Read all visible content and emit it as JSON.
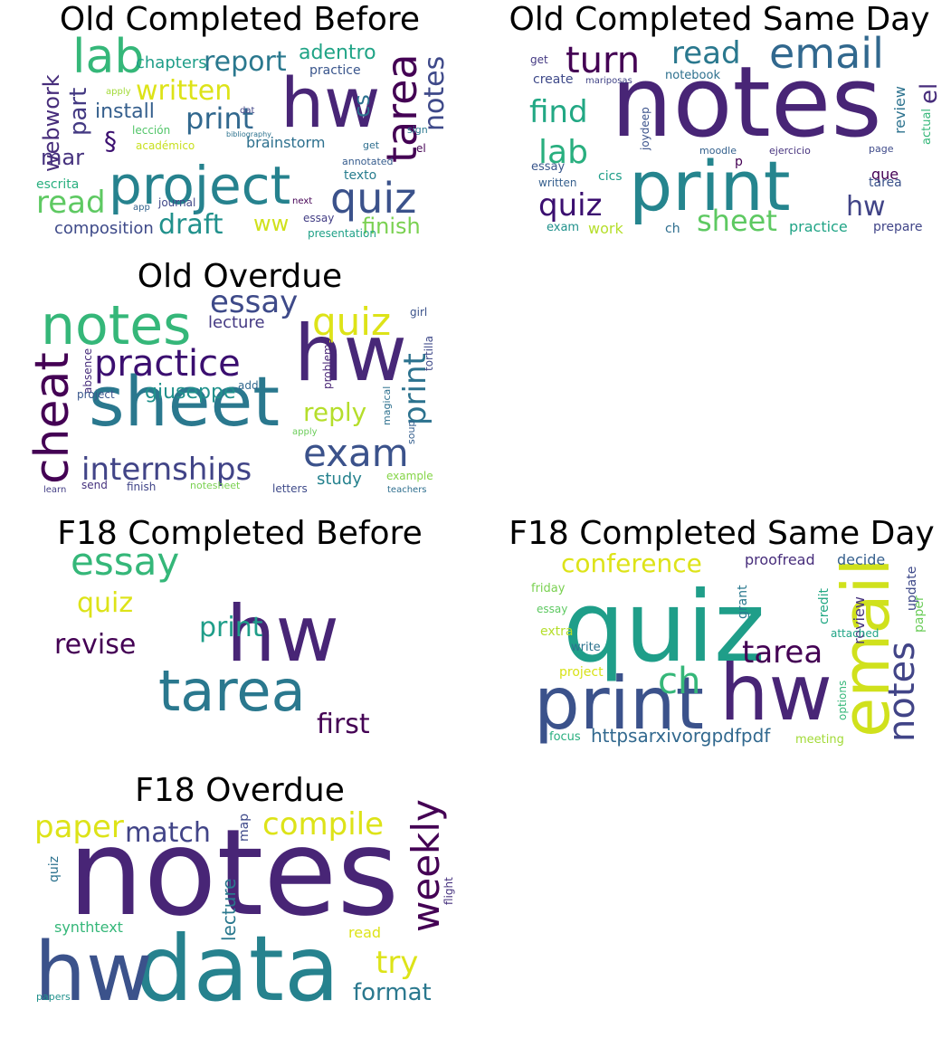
{
  "figure": {
    "panels": [
      {
        "title": "Old Completed Before",
        "words": [
          {
            "t": "project",
            "c": "#26828e"
          },
          {
            "t": "hw",
            "c": "#482576"
          },
          {
            "t": "quiz",
            "c": "#3b528b"
          },
          {
            "t": "lab",
            "c": "#35b779"
          },
          {
            "t": "print",
            "c": "#31688e"
          },
          {
            "t": "written",
            "c": "#dde318"
          },
          {
            "t": "report",
            "c": "#2a788e"
          },
          {
            "t": "tarea",
            "c": "#440154"
          },
          {
            "t": "notes",
            "c": "#3e4989"
          },
          {
            "t": "read",
            "c": "#5ec962"
          },
          {
            "t": "webwork",
            "c": "#472d7b"
          },
          {
            "t": "draft",
            "c": "#21918c"
          },
          {
            "t": "part",
            "c": "#443a83"
          },
          {
            "t": "finish",
            "c": "#7ad151"
          },
          {
            "t": "install",
            "c": "#355f8d"
          },
          {
            "t": "cs",
            "c": "#2c728e"
          },
          {
            "t": "adentro",
            "c": "#20a486"
          },
          {
            "t": "§",
            "c": "#3b0f70"
          },
          {
            "t": "mar",
            "c": "#46327e"
          },
          {
            "t": "ww",
            "c": "#d0e11c"
          },
          {
            "t": "chapters",
            "c": "#1f9e89"
          },
          {
            "t": "composition",
            "c": "#3e4a89"
          },
          {
            "t": "brainstorm",
            "c": "#2d708e"
          },
          {
            "t": "practice",
            "c": "#39558c"
          },
          {
            "t": "lección",
            "c": "#52c569"
          },
          {
            "t": "académico",
            "c": "#c8e020"
          },
          {
            "t": "escrita",
            "c": "#29af7f"
          },
          {
            "t": "journal",
            "c": "#3f4788"
          },
          {
            "t": "texto",
            "c": "#287d8e"
          },
          {
            "t": "essay",
            "c": "#433e85"
          },
          {
            "t": "presentation",
            "c": "#1fa187"
          },
          {
            "t": "annotated",
            "c": "#365c8d"
          },
          {
            "t": "apply",
            "c": "#a2da37"
          },
          {
            "t": "app",
            "c": "#33638d"
          },
          {
            "t": "next",
            "c": "#440154"
          },
          {
            "t": "get",
            "c": "#2e6e8e"
          },
          {
            "t": "sign",
            "c": "#2a788e"
          },
          {
            "t": "el",
            "c": "#440154"
          },
          {
            "t": "dat",
            "c": "#414487"
          },
          {
            "t": "bibliography",
            "c": "#2c728e"
          }
        ]
      },
      {
        "title": "Old Completed Same Day",
        "words": [
          {
            "t": "notes",
            "c": "#482576"
          },
          {
            "t": "print",
            "c": "#25858e"
          },
          {
            "t": "email",
            "c": "#31688e"
          },
          {
            "t": "turn",
            "c": "#440154"
          },
          {
            "t": "read",
            "c": "#2a788e"
          },
          {
            "t": "lab",
            "c": "#29af7f"
          },
          {
            "t": "find",
            "c": "#22a884"
          },
          {
            "t": "quiz",
            "c": "#3b0f70"
          },
          {
            "t": "sheet",
            "c": "#5ec962"
          },
          {
            "t": "hw",
            "c": "#414487"
          },
          {
            "t": "el",
            "c": "#472d7b"
          },
          {
            "t": "review",
            "c": "#2c728e"
          },
          {
            "t": "actual",
            "c": "#35b779"
          },
          {
            "t": "que",
            "c": "#440154"
          },
          {
            "t": "tarea",
            "c": "#3b528b"
          },
          {
            "t": "practice",
            "c": "#20a486"
          },
          {
            "t": "prepare",
            "c": "#404588"
          },
          {
            "t": "create",
            "c": "#3e4989"
          },
          {
            "t": "get",
            "c": "#443983"
          },
          {
            "t": "notebook",
            "c": "#2d708e"
          },
          {
            "t": "essay",
            "c": "#39568c"
          },
          {
            "t": "written",
            "c": "#355f8d"
          },
          {
            "t": "exam",
            "c": "#21918c"
          },
          {
            "t": "work",
            "c": "#b5de2b"
          },
          {
            "t": "ch",
            "c": "#2e6e8e"
          },
          {
            "t": "cics",
            "c": "#1f9e89"
          },
          {
            "t": "moodle",
            "c": "#34618d"
          },
          {
            "t": "ejercicio",
            "c": "#46327e"
          },
          {
            "t": "page",
            "c": "#3e4a89"
          },
          {
            "t": "joydeep",
            "c": "#3b528b"
          },
          {
            "t": "p",
            "c": "#440154"
          },
          {
            "t": "mariposas",
            "c": "#414487"
          }
        ]
      },
      {
        "title": "Old Overdue",
        "words": [
          {
            "t": "sheet",
            "c": "#2a788e"
          },
          {
            "t": "hw",
            "c": "#482878"
          },
          {
            "t": "notes",
            "c": "#35b779"
          },
          {
            "t": "cheat",
            "c": "#440154"
          },
          {
            "t": "practice",
            "c": "#3b0f70"
          },
          {
            "t": "exam",
            "c": "#3b528b"
          },
          {
            "t": "internships",
            "c": "#414487"
          },
          {
            "t": "quiz",
            "c": "#dde318"
          },
          {
            "t": "essay",
            "c": "#3e4a89"
          },
          {
            "t": "print",
            "c": "#2c728e"
          },
          {
            "t": "giuseppe",
            "c": "#21918c"
          },
          {
            "t": "reply",
            "c": "#b5de2b"
          },
          {
            "t": "lecture",
            "c": "#443983"
          },
          {
            "t": "study",
            "c": "#26828e"
          },
          {
            "t": "problems",
            "c": "#482475"
          },
          {
            "t": "tortilla",
            "c": "#3e4989"
          },
          {
            "t": "soup",
            "c": "#355f8d"
          },
          {
            "t": "magical",
            "c": "#2d708e"
          },
          {
            "t": "absence",
            "c": "#472d7b"
          },
          {
            "t": "project",
            "c": "#39568c"
          },
          {
            "t": "add",
            "c": "#31688e"
          },
          {
            "t": "girl",
            "c": "#3b528b"
          },
          {
            "t": "example",
            "c": "#86d549"
          },
          {
            "t": "send",
            "c": "#46327e"
          },
          {
            "t": "finish",
            "c": "#404588"
          },
          {
            "t": "letters",
            "c": "#3e4a89"
          },
          {
            "t": "notesheet",
            "c": "#7ad151"
          },
          {
            "t": "learn",
            "c": "#433e85"
          },
          {
            "t": "teachers",
            "c": "#2e6e8e"
          },
          {
            "t": "apply",
            "c": "#6ccd5a"
          }
        ]
      },
      {
        "title": "F18 Completed Before",
        "words": [
          {
            "t": "hw",
            "c": "#482576"
          },
          {
            "t": "tarea",
            "c": "#2a788e"
          },
          {
            "t": "essay",
            "c": "#35b779"
          },
          {
            "t": "quiz",
            "c": "#dde318"
          },
          {
            "t": "print",
            "c": "#1f9e89"
          },
          {
            "t": "revise",
            "c": "#440154"
          },
          {
            "t": "first",
            "c": "#440154"
          }
        ]
      },
      {
        "title": "F18 Completed Same Day",
        "words": [
          {
            "t": "quiz",
            "c": "#1f9e89"
          },
          {
            "t": "email",
            "c": "#d0e11c"
          },
          {
            "t": "print",
            "c": "#3b528b"
          },
          {
            "t": "hw",
            "c": "#482576"
          },
          {
            "t": "notes",
            "c": "#414487"
          },
          {
            "t": "tarea",
            "c": "#440154"
          },
          {
            "t": "ch",
            "c": "#35b779"
          },
          {
            "t": "conference",
            "c": "#dde318"
          },
          {
            "t": "httpsarxivorgpdfpdf",
            "c": "#31688e"
          },
          {
            "t": "proofread",
            "c": "#472d7b"
          },
          {
            "t": "decide",
            "c": "#355f8d"
          },
          {
            "t": "grant",
            "c": "#2a788e"
          },
          {
            "t": "credit",
            "c": "#22a884"
          },
          {
            "t": "review",
            "c": "#46327e"
          },
          {
            "t": "update",
            "c": "#3e4989"
          },
          {
            "t": "paper",
            "c": "#6ccd5a"
          },
          {
            "t": "friday",
            "c": "#7ad151"
          },
          {
            "t": "essay",
            "c": "#5ec962"
          },
          {
            "t": "extra",
            "c": "#b5de2b"
          },
          {
            "t": "write",
            "c": "#2c728e"
          },
          {
            "t": "project",
            "c": "#d8e219"
          },
          {
            "t": "attached",
            "c": "#20a486"
          },
          {
            "t": "options",
            "c": "#35b779"
          },
          {
            "t": "focus",
            "c": "#29af7f"
          },
          {
            "t": "meeting",
            "c": "#a2da37"
          }
        ]
      },
      {
        "title": "F18 Overdue",
        "words": [
          {
            "t": "notes",
            "c": "#482576"
          },
          {
            "t": "data",
            "c": "#26828e"
          },
          {
            "t": "hw",
            "c": "#3b528b"
          },
          {
            "t": "weekly",
            "c": "#440154"
          },
          {
            "t": "compile",
            "c": "#dde318"
          },
          {
            "t": "paper",
            "c": "#dde318"
          },
          {
            "t": "match",
            "c": "#414487"
          },
          {
            "t": "try",
            "c": "#dde318"
          },
          {
            "t": "format",
            "c": "#2a788e"
          },
          {
            "t": "lecture",
            "c": "#2a788e"
          },
          {
            "t": "synthtext",
            "c": "#35b779"
          },
          {
            "t": "quiz",
            "c": "#2c728e"
          },
          {
            "t": "map",
            "c": "#3e4989"
          },
          {
            "t": "read",
            "c": "#dde318"
          },
          {
            "t": "flight",
            "c": "#46327e"
          },
          {
            "t": "papers",
            "c": "#21918c"
          }
        ]
      }
    ]
  }
}
